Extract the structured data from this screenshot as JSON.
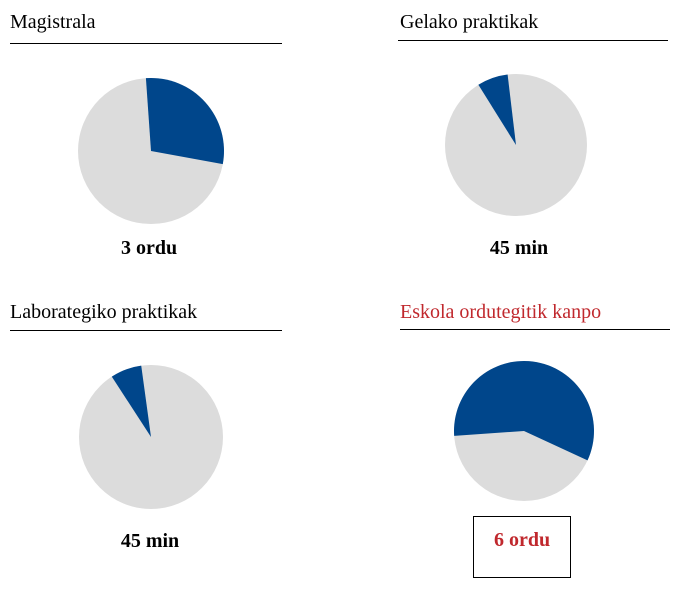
{
  "colors": {
    "slice": "#00468b",
    "rest": "#dcdcdc",
    "accent": "#c0282d"
  },
  "chart_data": [
    {
      "type": "pie",
      "title": "Magistrala",
      "label": "3 ordu",
      "fraction": 0.29
    },
    {
      "type": "pie",
      "title": "Gelako praktikak",
      "label": "45 min",
      "fraction": 0.07
    },
    {
      "type": "pie",
      "title": "Laborategiko praktikak",
      "label": "45 min",
      "fraction": 0.07
    },
    {
      "type": "pie",
      "title": "Eskola ordutegitik kanpo",
      "label": "6 ordu",
      "fraction": 0.58
    }
  ]
}
